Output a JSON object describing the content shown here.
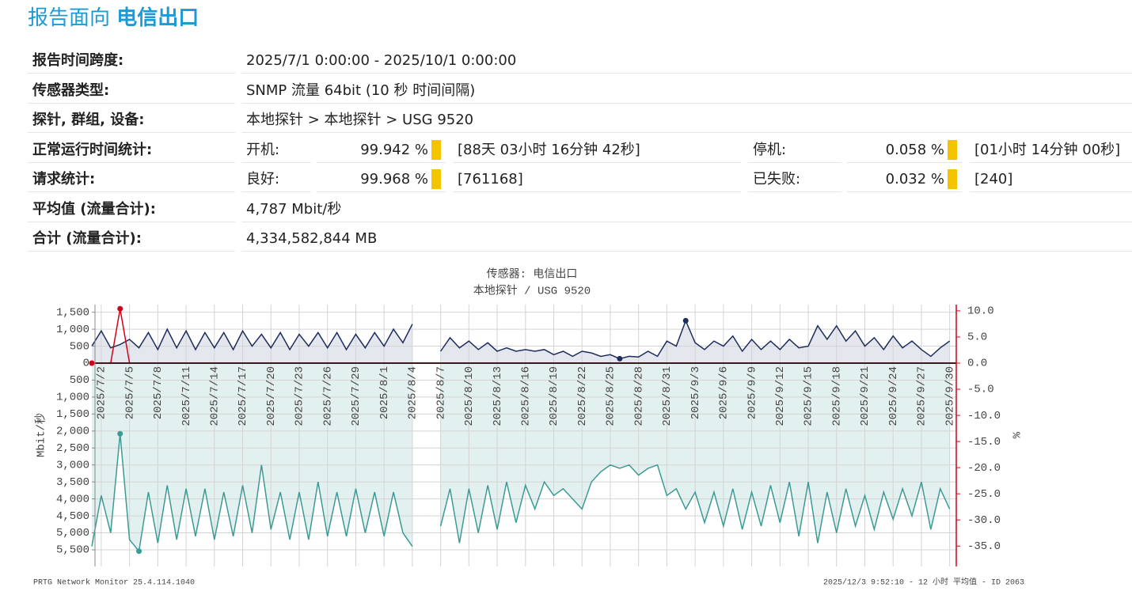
{
  "header": {
    "title_prefix": "报告面向",
    "title_name": "电信出口"
  },
  "info": {
    "rows": [
      {
        "label": "报告时间跨度:",
        "cells": [
          "2025/7/1 0:00:00 - 2025/10/1 0:00:00"
        ]
      },
      {
        "label": "传感器类型:",
        "cells": [
          "SNMP 流量 64bit (10 秒 时间间隔)"
        ]
      },
      {
        "label": "探针, 群组, 设备:",
        "cells": [
          "本地探针 > 本地探针 > USG 9520"
        ]
      },
      {
        "label": "正常运行时间统计:",
        "cells": [
          "开机:",
          "99.942 %",
          "[88天 03小时 16分钟 42秒]",
          "停机:",
          "0.058 %",
          "[01小时 14分钟 00秒]"
        ]
      },
      {
        "label": "请求统计:",
        "cells": [
          "良好:",
          "99.968 %",
          "[761168]",
          "已失败:",
          "0.032 %",
          "[240]"
        ]
      },
      {
        "label": "平均值 (流量合计):",
        "cells": [
          "4,787 Mbit/秒"
        ]
      },
      {
        "label": "合计 (流量合计):",
        "cells": [
          "4,334,582,844 MB"
        ]
      }
    ]
  },
  "chart_data": {
    "type": "mirrored-area",
    "title": "传感器: 电信出口",
    "subtitle": "本地探针 / USG 9520",
    "y_label": "Mbit/秒",
    "y2_label": "%",
    "grid": true,
    "x": [
      "2025/7/1",
      "2025/7/2",
      "2025/7/3",
      "2025/7/4",
      "2025/7/5",
      "2025/7/6",
      "2025/7/7",
      "2025/7/8",
      "2025/7/9",
      "2025/7/10",
      "2025/7/11",
      "2025/7/12",
      "2025/7/13",
      "2025/7/14",
      "2025/7/15",
      "2025/7/16",
      "2025/7/17",
      "2025/7/18",
      "2025/7/19",
      "2025/7/20",
      "2025/7/21",
      "2025/7/22",
      "2025/7/23",
      "2025/7/24",
      "2025/7/25",
      "2025/7/26",
      "2025/7/27",
      "2025/7/28",
      "2025/7/29",
      "2025/7/30",
      "2025/7/31",
      "2025/8/1",
      "2025/8/2",
      "2025/8/3",
      "2025/8/4",
      "2025/8/5",
      "2025/8/6",
      "2025/8/7",
      "2025/8/8",
      "2025/8/9",
      "2025/8/10",
      "2025/8/11",
      "2025/8/12",
      "2025/8/13",
      "2025/8/14",
      "2025/8/15",
      "2025/8/16",
      "2025/8/17",
      "2025/8/18",
      "2025/8/19",
      "2025/8/20",
      "2025/8/21",
      "2025/8/22",
      "2025/8/23",
      "2025/8/24",
      "2025/8/25",
      "2025/8/26",
      "2025/8/27",
      "2025/8/28",
      "2025/8/29",
      "2025/8/30",
      "2025/8/31",
      "2025/9/1",
      "2025/9/2",
      "2025/9/3",
      "2025/9/4",
      "2025/9/5",
      "2025/9/6",
      "2025/9/7",
      "2025/9/8",
      "2025/9/9",
      "2025/9/10",
      "2025/9/11",
      "2025/9/12",
      "2025/9/13",
      "2025/9/14",
      "2025/9/15",
      "2025/9/16",
      "2025/9/17",
      "2025/9/18",
      "2025/9/19",
      "2025/9/20",
      "2025/9/21",
      "2025/9/22",
      "2025/9/23",
      "2025/9/24",
      "2025/9/25",
      "2025/9/26",
      "2025/9/27",
      "2025/9/28",
      "2025/9/29",
      "2025/9/30"
    ],
    "xticks": [
      "2025/7/2",
      "2025/7/5",
      "2025/7/8",
      "2025/7/11",
      "2025/7/14",
      "2025/7/17",
      "2025/7/20",
      "2025/7/23",
      "2025/7/26",
      "2025/7/29",
      "2025/8/1",
      "2025/8/4",
      "2025/8/7",
      "2025/8/10",
      "2025/8/13",
      "2025/8/16",
      "2025/8/19",
      "2025/8/22",
      "2025/8/25",
      "2025/8/28",
      "2025/8/31",
      "2025/9/3",
      "2025/9/6",
      "2025/9/9",
      "2025/9/12",
      "2025/9/15",
      "2025/9/18",
      "2025/9/21",
      "2025/9/24",
      "2025/9/27",
      "2025/9/30"
    ],
    "y_upper": {
      "lim": [
        0,
        1725
      ],
      "ticks": [
        0,
        500,
        {
          "value": 1000,
          "label": "1,000"
        },
        {
          "value": 1500,
          "label": "1,500"
        }
      ]
    },
    "y_lower": {
      "lim": [
        0,
        5990
      ],
      "ticks": [
        500,
        {
          "value": 1000,
          "label": "1,000"
        },
        {
          "value": 1500,
          "label": "1,500"
        },
        {
          "value": 2000,
          "label": "2,000"
        },
        {
          "value": 2500,
          "label": "2,500"
        },
        {
          "value": 3000,
          "label": "3,000"
        },
        {
          "value": 3500,
          "label": "3,500"
        },
        {
          "value": 4000,
          "label": "4,000"
        },
        {
          "value": 4500,
          "label": "4,500"
        },
        {
          "value": 5000,
          "label": "5,000"
        },
        {
          "value": 5500,
          "label": "5,500"
        }
      ]
    },
    "y2lim": [
      -38.9,
      11.2
    ],
    "y2ticks": [
      {
        "value": 10,
        "label": "10.0"
      },
      {
        "value": 5,
        "label": "5.0"
      },
      {
        "value": 0,
        "label": "0.0"
      },
      {
        "value": -5,
        "label": "-5.0"
      },
      {
        "value": -10,
        "label": "-10.0"
      },
      {
        "value": -15,
        "label": "-15.0"
      },
      {
        "value": -20,
        "label": "-20.0"
      },
      {
        "value": -25,
        "label": "-25.0"
      },
      {
        "value": -30,
        "label": "-30.0"
      },
      {
        "value": -35,
        "label": "-35.0"
      }
    ],
    "y2_color": "#d0021b",
    "series": [
      {
        "color": "#1f2d5c",
        "fill": "#e4e7ee",
        "direction": "up",
        "values": [
          500,
          950,
          450,
          550,
          700,
          450,
          900,
          400,
          1000,
          450,
          950,
          400,
          900,
          450,
          900,
          400,
          950,
          500,
          850,
          450,
          900,
          400,
          850,
          500,
          900,
          450,
          900,
          400,
          850,
          450,
          900,
          500,
          1000,
          600,
          1150,
          null,
          null,
          350,
          750,
          450,
          650,
          400,
          600,
          350,
          450,
          350,
          400,
          350,
          400,
          250,
          350,
          200,
          350,
          300,
          200,
          250,
          130,
          200,
          180,
          350,
          200,
          650,
          500,
          1250,
          600,
          400,
          650,
          500,
          800,
          350,
          700,
          400,
          650,
          400,
          700,
          450,
          500,
          1100,
          700,
          1100,
          650,
          950,
          500,
          750,
          400,
          800,
          450,
          650,
          400,
          200,
          450,
          650
        ]
      },
      {
        "color": "#3d9a94",
        "fill": "#e2f0ef",
        "direction": "down",
        "values": [
          5400,
          3900,
          5000,
          2080,
          5200,
          5540,
          3800,
          5300,
          3600,
          5200,
          3700,
          5100,
          3700,
          5200,
          3800,
          5100,
          3600,
          5000,
          3000,
          4900,
          3800,
          5200,
          3800,
          5200,
          3500,
          5100,
          3800,
          5100,
          3700,
          5000,
          3800,
          5100,
          3800,
          5000,
          5400,
          null,
          null,
          4800,
          3700,
          5300,
          3700,
          5000,
          3600,
          4900,
          3500,
          4700,
          3600,
          4300,
          3500,
          3900,
          3700,
          4000,
          4300,
          3500,
          3200,
          3000,
          3100,
          3000,
          3300,
          3100,
          3000,
          3900,
          3700,
          4300,
          3800,
          4700,
          3800,
          4800,
          3700,
          4900,
          3800,
          4800,
          3600,
          4700,
          3500,
          5100,
          3500,
          5300,
          3800,
          5000,
          3700,
          4800,
          3900,
          4900,
          3800,
          4600,
          3700,
          4500,
          3500,
          4900,
          3700,
          4300
        ]
      },
      {
        "color": "#d0021b",
        "axis": "y2",
        "values": [
          0,
          0,
          0,
          10.4,
          0,
          0,
          0,
          0,
          0,
          0,
          0,
          0,
          0,
          0,
          0,
          0,
          0,
          0,
          0,
          0,
          0,
          0,
          0,
          0,
          0,
          0,
          0,
          0,
          0,
          0,
          0,
          0,
          0,
          0,
          0,
          null,
          null,
          0,
          0,
          0,
          0,
          0,
          0,
          0,
          0,
          0,
          0,
          0,
          0,
          0,
          0,
          0,
          0,
          0,
          0,
          0,
          0,
          0,
          0,
          0,
          0,
          0,
          0,
          0,
          0,
          0,
          0,
          0,
          0,
          0,
          0,
          0,
          0,
          0,
          0,
          0,
          0,
          0,
          0,
          0,
          0,
          0,
          0,
          0,
          0,
          0,
          0,
          0,
          0,
          0,
          0,
          0
        ]
      }
    ]
  },
  "footer": {
    "left": "PRTG Network Monitor 25.4.114.1040",
    "right": "2025/12/3 9:52:10 - 12 小时 平均值 - ID 2063"
  }
}
